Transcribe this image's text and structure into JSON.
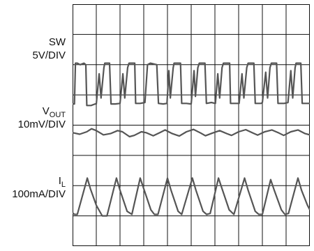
{
  "chart_data": {
    "type": "line",
    "grid": true,
    "grid_divisions": {
      "x": 10,
      "y": 8
    },
    "x_range_div": [
      0,
      10
    ],
    "y_range_div": [
      0,
      8
    ],
    "channels": [
      {
        "label_main": "SW",
        "label_sub": "",
        "scale": "5V/DIV",
        "color": "#555555",
        "points": [
          [
            0,
            4.7
          ],
          [
            0.08,
            4.7
          ],
          [
            0.12,
            6.05
          ],
          [
            0.2,
            6.05
          ],
          [
            0.32,
            6.0
          ],
          [
            0.48,
            6.05
          ],
          [
            0.56,
            6.0
          ],
          [
            0.6,
            4.65
          ],
          [
            0.78,
            4.65
          ],
          [
            0.95,
            4.7
          ],
          [
            1.0,
            4.7
          ],
          [
            1.12,
            5.7
          ],
          [
            1.2,
            4.9
          ],
          [
            1.32,
            5.9
          ],
          [
            1.36,
            6.05
          ],
          [
            1.56,
            6.05
          ],
          [
            1.62,
            4.7
          ],
          [
            1.8,
            4.7
          ],
          [
            2.0,
            4.72
          ],
          [
            2.12,
            5.7
          ],
          [
            2.2,
            4.9
          ],
          [
            2.32,
            5.9
          ],
          [
            2.38,
            6.05
          ],
          [
            2.62,
            6.05
          ],
          [
            2.66,
            4.72
          ],
          [
            2.85,
            4.72
          ],
          [
            3.05,
            4.75
          ],
          [
            3.16,
            6.0
          ],
          [
            3.28,
            6.05
          ],
          [
            3.55,
            6.0
          ],
          [
            3.62,
            4.72
          ],
          [
            3.82,
            4.7
          ],
          [
            3.98,
            4.72
          ],
          [
            4.06,
            5.8
          ],
          [
            4.12,
            4.9
          ],
          [
            4.24,
            5.9
          ],
          [
            4.28,
            6.05
          ],
          [
            4.55,
            6.05
          ],
          [
            4.6,
            4.72
          ],
          [
            4.8,
            4.72
          ],
          [
            5.0,
            4.7
          ],
          [
            5.12,
            5.8
          ],
          [
            5.18,
            4.95
          ],
          [
            5.28,
            5.9
          ],
          [
            5.34,
            6.05
          ],
          [
            5.58,
            6.05
          ],
          [
            5.64,
            4.72
          ],
          [
            5.85,
            4.75
          ],
          [
            6.02,
            4.72
          ],
          [
            6.12,
            5.7
          ],
          [
            6.2,
            4.9
          ],
          [
            6.3,
            5.9
          ],
          [
            6.36,
            6.05
          ],
          [
            6.62,
            6.05
          ],
          [
            6.66,
            4.72
          ],
          [
            6.9,
            4.72
          ],
          [
            7.02,
            4.72
          ],
          [
            7.14,
            5.7
          ],
          [
            7.22,
            4.9
          ],
          [
            7.34,
            5.9
          ],
          [
            7.4,
            6.05
          ],
          [
            7.64,
            6.05
          ],
          [
            7.7,
            4.72
          ],
          [
            7.95,
            4.72
          ],
          [
            8.0,
            4.75
          ],
          [
            8.14,
            5.75
          ],
          [
            8.22,
            4.9
          ],
          [
            8.32,
            5.9
          ],
          [
            8.38,
            6.05
          ],
          [
            8.6,
            6.05
          ],
          [
            8.66,
            4.72
          ],
          [
            8.92,
            4.72
          ],
          [
            9.08,
            4.75
          ],
          [
            9.2,
            5.8
          ],
          [
            9.28,
            4.9
          ],
          [
            9.38,
            5.9
          ],
          [
            9.42,
            6.05
          ],
          [
            9.62,
            6.05
          ],
          [
            9.68,
            4.72
          ],
          [
            9.9,
            4.72
          ],
          [
            10.0,
            4.72
          ]
        ]
      },
      {
        "label_main": "V",
        "label_sub": "OUT",
        "scale": "10mV/DIV",
        "color": "#555555",
        "points": [
          [
            0,
            3.75
          ],
          [
            0.3,
            3.7
          ],
          [
            0.6,
            3.78
          ],
          [
            0.8,
            3.88
          ],
          [
            1.0,
            3.82
          ],
          [
            1.3,
            3.68
          ],
          [
            1.6,
            3.72
          ],
          [
            1.9,
            3.82
          ],
          [
            2.1,
            3.78
          ],
          [
            2.4,
            3.62
          ],
          [
            2.6,
            3.66
          ],
          [
            2.9,
            3.78
          ],
          [
            3.1,
            3.75
          ],
          [
            3.4,
            3.65
          ],
          [
            3.7,
            3.76
          ],
          [
            3.9,
            3.84
          ],
          [
            4.2,
            3.72
          ],
          [
            4.5,
            3.64
          ],
          [
            4.8,
            3.78
          ],
          [
            5.1,
            3.86
          ],
          [
            5.4,
            3.74
          ],
          [
            5.6,
            3.65
          ],
          [
            5.9,
            3.74
          ],
          [
            6.2,
            3.82
          ],
          [
            6.5,
            3.72
          ],
          [
            6.7,
            3.66
          ],
          [
            7.0,
            3.78
          ],
          [
            7.3,
            3.85
          ],
          [
            7.6,
            3.74
          ],
          [
            7.8,
            3.67
          ],
          [
            8.1,
            3.78
          ],
          [
            8.4,
            3.84
          ],
          [
            8.7,
            3.74
          ],
          [
            8.9,
            3.66
          ],
          [
            9.2,
            3.78
          ],
          [
            9.5,
            3.84
          ],
          [
            9.8,
            3.72
          ],
          [
            10.0,
            3.68
          ]
        ]
      },
      {
        "label_main": "I",
        "label_sub": "L",
        "scale": "100mA/DIV",
        "color": "#555555",
        "points": [
          [
            0,
            1.1
          ],
          [
            0.08,
            1.05
          ],
          [
            0.2,
            1.05
          ],
          [
            0.62,
            2.25
          ],
          [
            0.75,
            1.9
          ],
          [
            1.0,
            1.35
          ],
          [
            1.25,
            1.0
          ],
          [
            1.45,
            1.0
          ],
          [
            1.85,
            2.25
          ],
          [
            2.0,
            1.85
          ],
          [
            2.3,
            1.15
          ],
          [
            2.5,
            1.05
          ],
          [
            2.85,
            2.25
          ],
          [
            3.0,
            1.9
          ],
          [
            3.3,
            1.2
          ],
          [
            3.45,
            1.05
          ],
          [
            3.6,
            1.05
          ],
          [
            4.0,
            2.25
          ],
          [
            4.15,
            1.85
          ],
          [
            4.45,
            1.15
          ],
          [
            4.6,
            1.05
          ],
          [
            5.05,
            2.25
          ],
          [
            5.2,
            1.85
          ],
          [
            5.5,
            1.15
          ],
          [
            5.65,
            1.05
          ],
          [
            5.8,
            1.08
          ],
          [
            6.15,
            2.25
          ],
          [
            6.3,
            1.9
          ],
          [
            6.6,
            1.2
          ],
          [
            6.8,
            1.05
          ],
          [
            7.25,
            2.25
          ],
          [
            7.4,
            1.85
          ],
          [
            7.7,
            1.15
          ],
          [
            7.85,
            1.05
          ],
          [
            8.0,
            1.05
          ],
          [
            8.35,
            2.2
          ],
          [
            8.5,
            1.85
          ],
          [
            8.8,
            1.2
          ],
          [
            8.95,
            1.05
          ],
          [
            9.1,
            1.08
          ],
          [
            9.5,
            2.25
          ],
          [
            9.65,
            1.85
          ],
          [
            9.9,
            1.35
          ],
          [
            10.0,
            1.2
          ]
        ]
      }
    ]
  }
}
